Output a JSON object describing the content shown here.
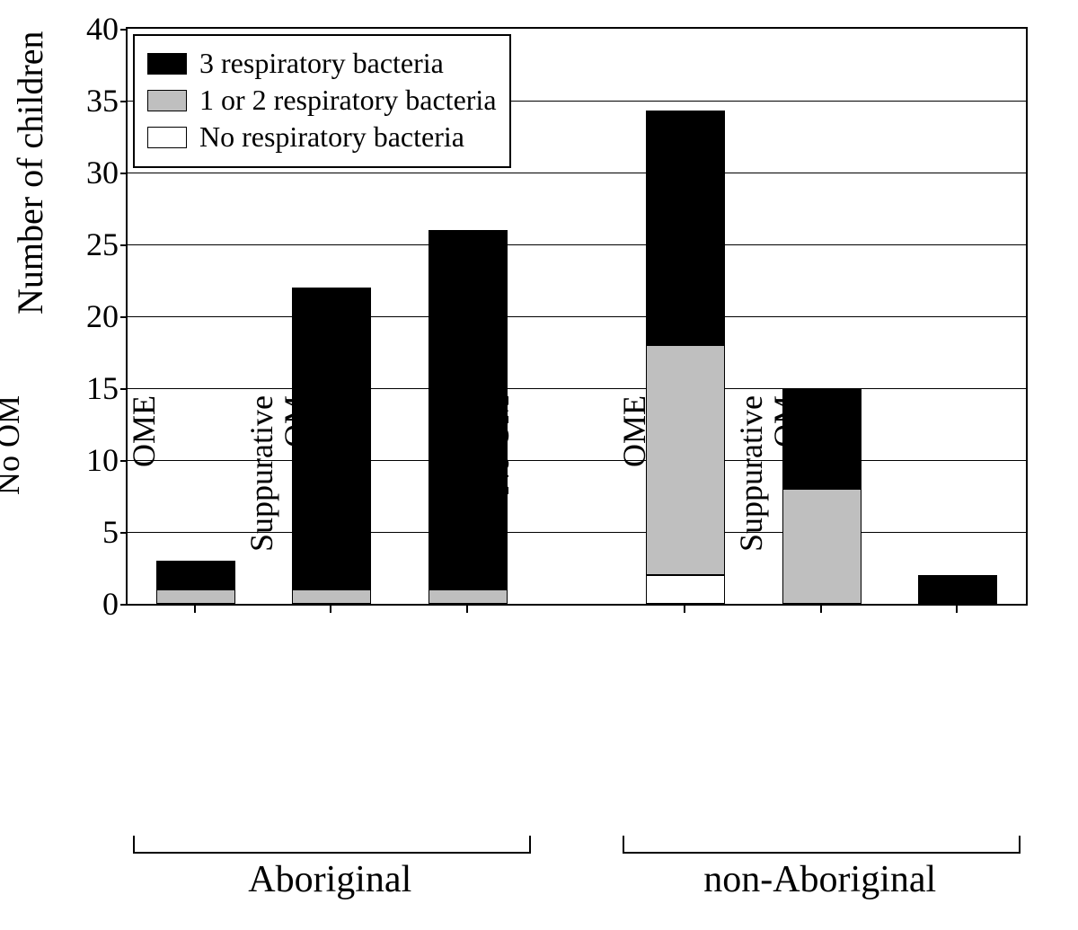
{
  "chart": {
    "type": "stacked-bar",
    "background_color": "#ffffff",
    "axis_color": "#000000",
    "grid_color": "#000000",
    "y_axis": {
      "label": "Number of children",
      "label_fontsize": 40,
      "min": 0,
      "max": 40,
      "tick_step": 5,
      "ticks": [
        0,
        5,
        10,
        15,
        20,
        25,
        30,
        35,
        40
      ],
      "tick_fontsize": 36
    },
    "series": [
      {
        "key": "three",
        "label": "3 respiratory bacteria",
        "color": "#000000"
      },
      {
        "key": "one_two",
        "label": "1 or 2 respiratory bacteria",
        "color": "#bfbfbf"
      },
      {
        "key": "none",
        "label": "No respiratory bacteria",
        "color": "#ffffff"
      }
    ],
    "legend": {
      "fontsize": 32,
      "border_color": "#000000",
      "background": "#ffffff"
    },
    "groups": [
      {
        "label": "Aboriginal",
        "start_index": 0,
        "end_index": 2
      },
      {
        "label": "non-Aboriginal",
        "start_index": 3,
        "end_index": 5
      }
    ],
    "group_label_fontsize": 42,
    "categories": [
      {
        "label": "No OM",
        "values": {
          "none": 0,
          "one_two": 1,
          "three": 2
        }
      },
      {
        "label": "OME",
        "values": {
          "none": 0,
          "one_two": 1,
          "three": 21
        }
      },
      {
        "label": "Suppurative\nOM",
        "values": {
          "none": 0,
          "one_two": 1,
          "three": 25
        }
      },
      {
        "label": "No OM",
        "values": {
          "none": 2,
          "one_two": 16,
          "three": 16.3
        }
      },
      {
        "label": "OME",
        "values": {
          "none": 0,
          "one_two": 8,
          "three": 7
        }
      },
      {
        "label": "Suppurative\nOM",
        "values": {
          "none": 0,
          "one_two": 0,
          "three": 2
        }
      }
    ],
    "category_label_fontsize": 36,
    "bar_width_ratio": 0.58,
    "group_gap_ratio": 0.6
  }
}
